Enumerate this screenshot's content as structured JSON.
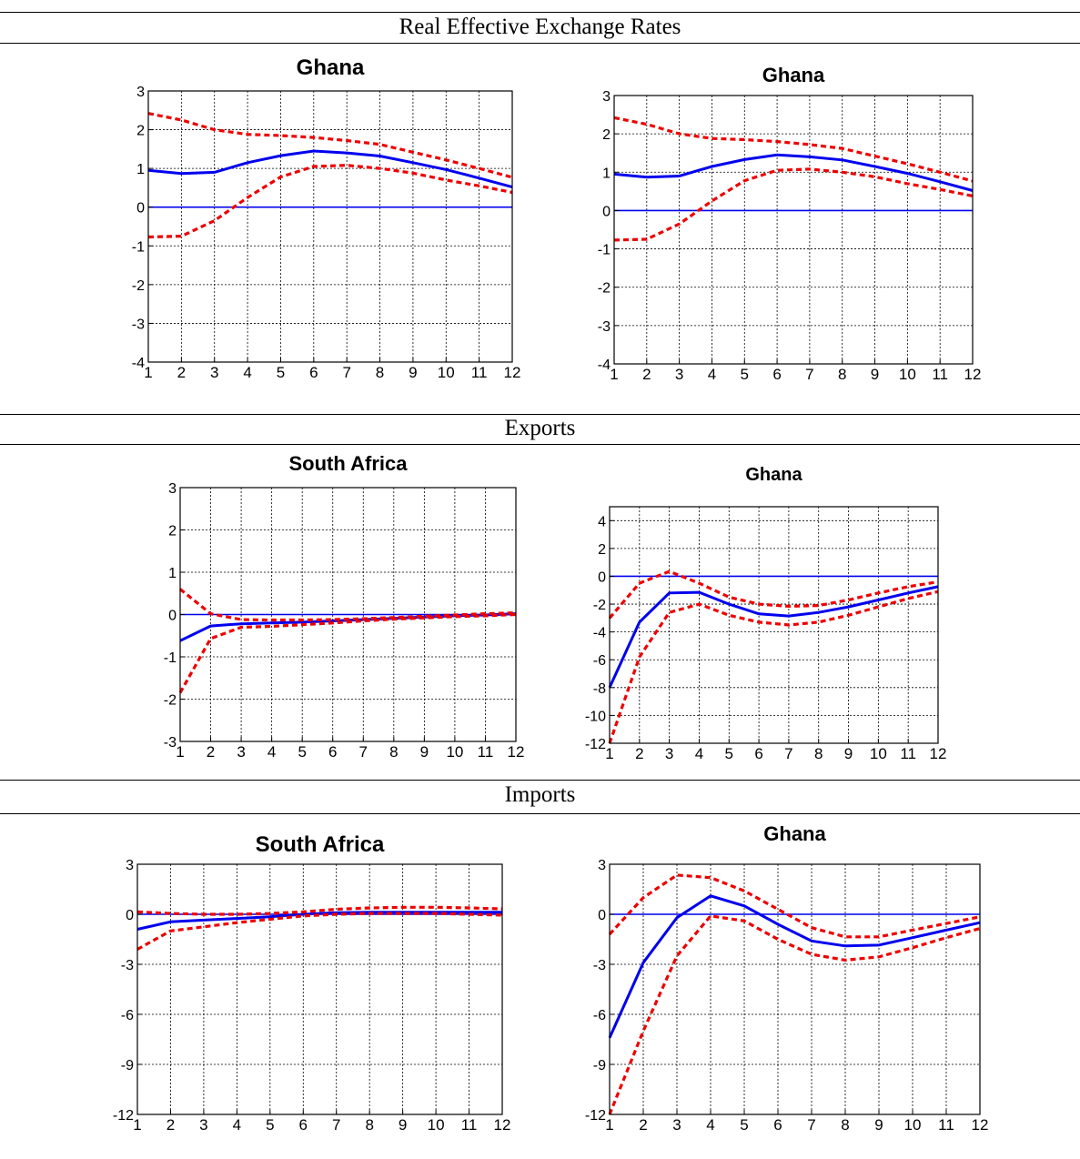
{
  "sections": [
    {
      "title": "Real Effective Exchange Rates"
    },
    {
      "title": "Exports"
    },
    {
      "title": "Imports"
    }
  ],
  "colors": {
    "response": "#0000ee",
    "bands": "#ee0000",
    "zero": "#0000ee",
    "grid": "#000000"
  },
  "chart_data": [
    {
      "type": "line",
      "section": "Real Effective Exchange Rates",
      "title": "Ghana",
      "x": [
        1,
        2,
        3,
        4,
        5,
        6,
        7,
        8,
        9,
        10,
        11,
        12
      ],
      "xlim": [
        1,
        12
      ],
      "ylim": [
        -4,
        3
      ],
      "yticks": [
        -4,
        -3,
        -2,
        -1,
        0,
        1,
        2,
        3
      ],
      "grid": true,
      "zero_line": true,
      "series": [
        {
          "role": "response",
          "style": "solid",
          "values": [
            0.95,
            0.87,
            0.9,
            1.15,
            1.33,
            1.45,
            1.4,
            1.32,
            1.15,
            0.97,
            0.75,
            0.52
          ]
        },
        {
          "role": "upper-band",
          "style": "dashed",
          "values": [
            2.42,
            2.25,
            2.0,
            1.88,
            1.85,
            1.8,
            1.72,
            1.62,
            1.42,
            1.22,
            1.0,
            0.77
          ]
        },
        {
          "role": "lower-band",
          "style": "dashed",
          "values": [
            -0.77,
            -0.75,
            -0.35,
            0.25,
            0.78,
            1.05,
            1.08,
            1.0,
            0.88,
            0.7,
            0.55,
            0.38
          ]
        }
      ]
    },
    {
      "type": "line",
      "section": "Real Effective Exchange Rates",
      "title": "Ghana",
      "x": [
        1,
        2,
        3,
        4,
        5,
        6,
        7,
        8,
        9,
        10,
        11,
        12
      ],
      "xlim": [
        1,
        12
      ],
      "ylim": [
        -4,
        3
      ],
      "yticks": [
        -4,
        -3,
        -2,
        -1,
        0,
        1,
        2,
        3
      ],
      "grid": true,
      "zero_line": true,
      "series": [
        {
          "role": "response",
          "style": "solid",
          "values": [
            0.95,
            0.87,
            0.9,
            1.15,
            1.33,
            1.45,
            1.4,
            1.32,
            1.15,
            0.97,
            0.75,
            0.52
          ]
        },
        {
          "role": "upper-band",
          "style": "dashed",
          "values": [
            2.42,
            2.25,
            2.0,
            1.88,
            1.85,
            1.8,
            1.72,
            1.62,
            1.42,
            1.22,
            1.0,
            0.77
          ]
        },
        {
          "role": "lower-band",
          "style": "dashed",
          "values": [
            -0.77,
            -0.75,
            -0.35,
            0.25,
            0.78,
            1.05,
            1.08,
            1.0,
            0.88,
            0.7,
            0.55,
            0.38
          ]
        }
      ]
    },
    {
      "type": "line",
      "section": "Exports",
      "title": "South Africa",
      "x": [
        1,
        2,
        3,
        4,
        5,
        6,
        7,
        8,
        9,
        10,
        11,
        12
      ],
      "xlim": [
        1,
        12
      ],
      "ylim": [
        -3,
        3
      ],
      "yticks": [
        -3,
        -2,
        -1,
        0,
        1,
        2,
        3
      ],
      "grid": true,
      "zero_line": true,
      "series": [
        {
          "role": "response",
          "style": "solid",
          "values": [
            -0.62,
            -0.27,
            -0.22,
            -0.2,
            -0.18,
            -0.15,
            -0.12,
            -0.09,
            -0.06,
            -0.03,
            -0.01,
            0.02
          ]
        },
        {
          "role": "upper-band",
          "style": "dashed",
          "values": [
            0.6,
            0.02,
            -0.12,
            -0.13,
            -0.13,
            -0.12,
            -0.1,
            -0.07,
            -0.04,
            -0.01,
            0.02,
            0.04
          ]
        },
        {
          "role": "lower-band",
          "style": "dashed",
          "values": [
            -1.85,
            -0.57,
            -0.3,
            -0.28,
            -0.24,
            -0.2,
            -0.15,
            -0.11,
            -0.08,
            -0.05,
            -0.03,
            0.0
          ]
        }
      ]
    },
    {
      "type": "line",
      "section": "Exports",
      "title": "Ghana",
      "x": [
        1,
        2,
        3,
        4,
        5,
        6,
        7,
        8,
        9,
        10,
        11,
        12
      ],
      "xlim": [
        1,
        12
      ],
      "ylim": [
        -12,
        5
      ],
      "yticks": [
        -12,
        -10,
        -8,
        -6,
        -4,
        -2,
        0,
        2,
        4
      ],
      "grid": true,
      "zero_line": true,
      "series": [
        {
          "role": "response",
          "style": "solid",
          "values": [
            -8.0,
            -3.3,
            -1.2,
            -1.15,
            -2.0,
            -2.7,
            -2.85,
            -2.6,
            -2.2,
            -1.7,
            -1.2,
            -0.75
          ]
        },
        {
          "role": "upper-band",
          "style": "dashed",
          "values": [
            -3.0,
            -0.5,
            0.35,
            -0.5,
            -1.5,
            -2.0,
            -2.15,
            -2.1,
            -1.7,
            -1.2,
            -0.75,
            -0.4
          ]
        },
        {
          "role": "lower-band",
          "style": "dashed",
          "values": [
            -12.0,
            -5.8,
            -2.6,
            -2.0,
            -2.8,
            -3.3,
            -3.5,
            -3.3,
            -2.8,
            -2.2,
            -1.6,
            -1.1
          ]
        }
      ]
    },
    {
      "type": "line",
      "section": "Imports",
      "title": "South Africa",
      "x": [
        1,
        2,
        3,
        4,
        5,
        6,
        7,
        8,
        9,
        10,
        11,
        12
      ],
      "xlim": [
        1,
        12
      ],
      "ylim": [
        -12,
        3
      ],
      "yticks": [
        -12,
        -9,
        -6,
        -3,
        0,
        3
      ],
      "grid": true,
      "zero_line": true,
      "series": [
        {
          "role": "response",
          "style": "solid",
          "values": [
            -0.9,
            -0.45,
            -0.35,
            -0.25,
            -0.15,
            0.0,
            0.1,
            0.12,
            0.12,
            0.12,
            0.12,
            0.12
          ]
        },
        {
          "role": "upper-band",
          "style": "dashed",
          "values": [
            0.15,
            0.05,
            0.0,
            0.0,
            0.05,
            0.15,
            0.3,
            0.38,
            0.42,
            0.42,
            0.38,
            0.33
          ]
        },
        {
          "role": "lower-band",
          "style": "dashed",
          "values": [
            -2.1,
            -1.0,
            -0.75,
            -0.5,
            -0.3,
            -0.1,
            0.0,
            0.05,
            0.05,
            0.05,
            0.0,
            -0.05
          ]
        }
      ]
    },
    {
      "type": "line",
      "section": "Imports",
      "title": "Ghana",
      "x": [
        1,
        2,
        3,
        4,
        5,
        6,
        7,
        8,
        9,
        10,
        11,
        12
      ],
      "xlim": [
        1,
        12
      ],
      "ylim": [
        -12,
        3
      ],
      "yticks": [
        -12,
        -9,
        -6,
        -3,
        0,
        3
      ],
      "grid": true,
      "zero_line": true,
      "series": [
        {
          "role": "response",
          "style": "solid",
          "values": [
            -7.4,
            -2.9,
            -0.2,
            1.1,
            0.5,
            -0.6,
            -1.6,
            -1.9,
            -1.85,
            -1.4,
            -0.95,
            -0.5
          ]
        },
        {
          "role": "upper-band",
          "style": "dashed",
          "values": [
            -1.2,
            1.0,
            2.35,
            2.2,
            1.4,
            0.3,
            -0.8,
            -1.35,
            -1.35,
            -0.95,
            -0.55,
            -0.15
          ]
        },
        {
          "role": "lower-band",
          "style": "dashed",
          "values": [
            -12.0,
            -7.0,
            -2.5,
            -0.1,
            -0.4,
            -1.5,
            -2.4,
            -2.75,
            -2.55,
            -2.0,
            -1.4,
            -0.85
          ]
        }
      ]
    }
  ]
}
